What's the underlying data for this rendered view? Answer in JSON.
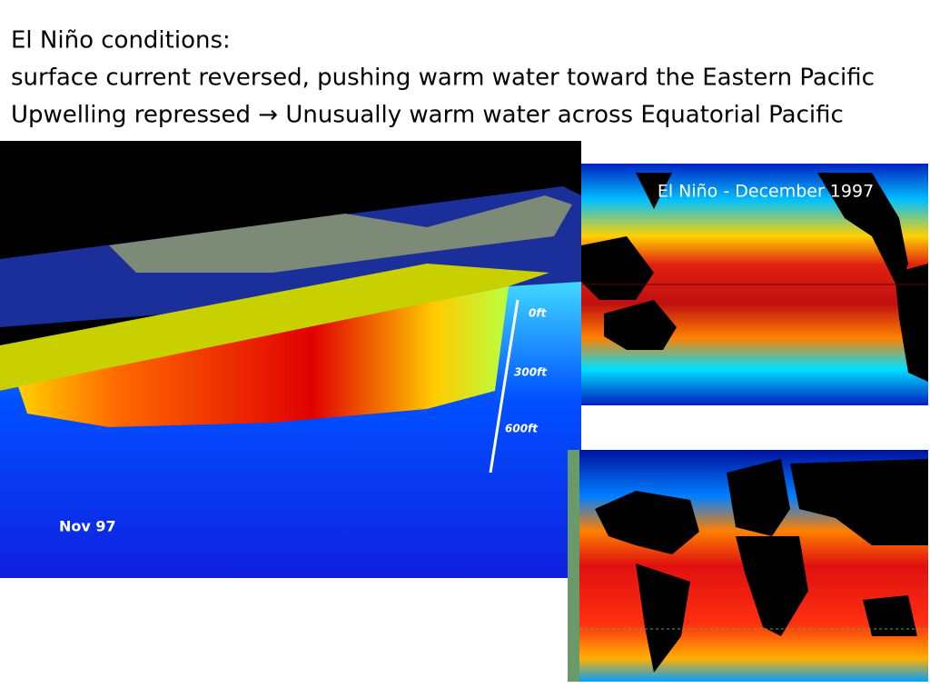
{
  "title_lines": [
    "El Niño conditions:",
    "surface current reversed, pushing warm water toward the Eastern Pacific",
    "Upwelling repressed → Unusually warm water across Equatorial Pacific"
  ],
  "cross_section": {
    "depth_labels": [
      "0ft",
      "300ft",
      "600ft"
    ],
    "date_label": "Nov 97"
  },
  "sst_map": {
    "title": "El Niño - December 1997"
  }
}
